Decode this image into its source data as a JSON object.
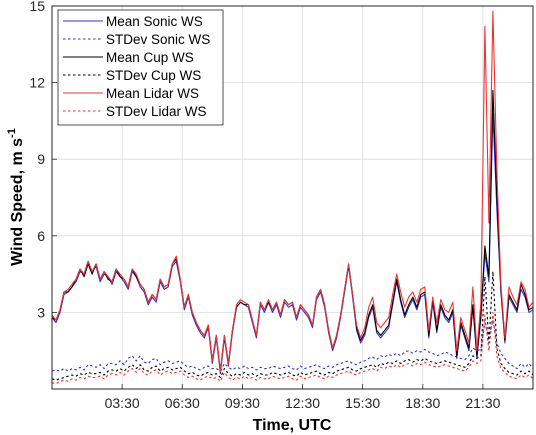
{
  "chart_data": {
    "type": "line",
    "xlabel": "Time, UTC",
    "ylabel_main": "Wind Speed, m s",
    "ylabel_sup": "-1",
    "xlim": [
      0,
      24
    ],
    "ylim": [
      0,
      15
    ],
    "x_ticks": [
      {
        "hour": 3.5,
        "label": "03:30"
      },
      {
        "hour": 6.5,
        "label": "06:30"
      },
      {
        "hour": 9.5,
        "label": "09:30"
      },
      {
        "hour": 12.5,
        "label": "12:30"
      },
      {
        "hour": 15.5,
        "label": "15:30"
      },
      {
        "hour": 18.5,
        "label": "18:30"
      },
      {
        "hour": 21.5,
        "label": "21:30"
      }
    ],
    "y_ticks": [
      3,
      6,
      9,
      12,
      15
    ],
    "grid": true,
    "legend_position": "top-left",
    "x": [
      0.0,
      0.2,
      0.4,
      0.6,
      0.8,
      1.0,
      1.2,
      1.4,
      1.6,
      1.8,
      2.0,
      2.2,
      2.4,
      2.6,
      2.8,
      3.0,
      3.2,
      3.4,
      3.6,
      3.8,
      4.0,
      4.2,
      4.4,
      4.6,
      4.8,
      5.0,
      5.2,
      5.4,
      5.6,
      5.8,
      6.0,
      6.2,
      6.4,
      6.6,
      6.8,
      7.0,
      7.2,
      7.4,
      7.6,
      7.8,
      8.0,
      8.2,
      8.4,
      8.6,
      8.8,
      9.0,
      9.2,
      9.4,
      9.6,
      9.8,
      10.0,
      10.2,
      10.4,
      10.6,
      10.8,
      11.0,
      11.2,
      11.4,
      11.6,
      11.8,
      12.0,
      12.2,
      12.4,
      12.6,
      12.8,
      13.0,
      13.2,
      13.4,
      13.6,
      13.8,
      14.0,
      14.2,
      14.4,
      14.6,
      14.8,
      15.0,
      15.2,
      15.4,
      15.6,
      15.8,
      16.0,
      16.2,
      16.4,
      16.6,
      16.8,
      17.0,
      17.2,
      17.4,
      17.6,
      17.8,
      18.0,
      18.2,
      18.4,
      18.6,
      18.8,
      19.0,
      19.2,
      19.4,
      19.6,
      19.8,
      20.0,
      20.2,
      20.4,
      20.6,
      20.8,
      21.0,
      21.2,
      21.4,
      21.6,
      21.8,
      22.0,
      22.2,
      22.4,
      22.6,
      22.8,
      23.0,
      23.2,
      23.4,
      23.6,
      23.8,
      24.0
    ],
    "series": [
      {
        "name": "Mean Sonic WS",
        "color": "#3333cc",
        "dash": "solid",
        "values": [
          2.8,
          2.6,
          3.0,
          3.7,
          3.8,
          4.0,
          4.2,
          4.6,
          4.5,
          5.0,
          4.6,
          4.8,
          4.2,
          4.5,
          4.4,
          4.1,
          4.6,
          4.4,
          4.2,
          3.9,
          4.6,
          4.4,
          4.0,
          3.8,
          3.3,
          3.6,
          3.4,
          4.2,
          3.9,
          4.0,
          4.8,
          5.0,
          4.2,
          3.1,
          3.6,
          2.9,
          2.5,
          2.2,
          2.0,
          2.4,
          1.0,
          2.0,
          0.6,
          2.0,
          0.9,
          2.2,
          3.2,
          3.4,
          3.3,
          3.2,
          2.6,
          2.0,
          3.3,
          3.0,
          3.4,
          3.0,
          3.3,
          2.8,
          3.4,
          3.2,
          3.3,
          2.7,
          3.2,
          3.0,
          2.8,
          2.4,
          3.5,
          3.8,
          3.2,
          2.2,
          1.5,
          2.0,
          2.8,
          3.8,
          4.8,
          3.6,
          2.3,
          1.8,
          2.1,
          2.8,
          3.2,
          2.2,
          2.0,
          2.2,
          2.4,
          3.3,
          4.2,
          3.4,
          2.8,
          3.2,
          3.5,
          3.1,
          3.6,
          3.7,
          2.0,
          3.4,
          2.2,
          3.2,
          2.8,
          2.6,
          3.0,
          1.2,
          2.5,
          2.0,
          1.5,
          3.2,
          1.2,
          2.8,
          5.3,
          4.2,
          10.8,
          7.0,
          3.8,
          1.8,
          3.6,
          3.3,
          3.0,
          3.9,
          3.6,
          3.0,
          3.1
        ]
      },
      {
        "name": "STDev Sonic WS",
        "color": "#3333cc",
        "dash": "dot",
        "values": [
          0.7,
          0.75,
          0.7,
          0.8,
          0.7,
          0.8,
          0.75,
          0.85,
          0.75,
          0.95,
          0.9,
          0.85,
          0.95,
          0.8,
          1.0,
          1.0,
          0.95,
          1.1,
          0.95,
          1.2,
          1.3,
          1.1,
          1.3,
          1.05,
          1.0,
          1.15,
          1.2,
          0.95,
          1.05,
          1.1,
          1.0,
          1.05,
          1.1,
          0.95,
          0.85,
          0.9,
          0.8,
          0.75,
          0.85,
          0.9,
          0.8,
          0.8,
          0.7,
          1.0,
          0.85,
          0.75,
          0.85,
          0.8,
          0.9,
          0.8,
          0.85,
          0.75,
          0.85,
          0.8,
          0.8,
          0.9,
          0.85,
          0.8,
          0.85,
          0.9,
          0.8,
          0.75,
          0.9,
          0.8,
          0.85,
          0.9,
          0.95,
          0.85,
          0.8,
          0.9,
          0.85,
          0.95,
          1.0,
          1.05,
          1.1,
          1.0,
          0.95,
          1.05,
          1.1,
          1.2,
          1.25,
          1.15,
          1.3,
          1.25,
          1.35,
          1.3,
          1.4,
          1.3,
          1.45,
          1.5,
          1.4,
          1.5,
          1.45,
          1.55,
          1.45,
          1.4,
          1.3,
          1.35,
          1.45,
          1.4,
          1.3,
          1.25,
          1.2,
          1.15,
          1.3,
          1.6,
          1.5,
          1.55,
          2.6,
          2.0,
          2.7,
          1.8,
          1.4,
          1.2,
          1.0,
          0.9,
          0.8,
          1.0,
          0.85,
          1.0,
          0.8
        ]
      },
      {
        "name": "Mean Cup WS",
        "color": "#000000",
        "dash": "solid",
        "values": [
          2.8,
          2.7,
          3.1,
          3.8,
          3.8,
          4.0,
          4.3,
          4.7,
          4.4,
          4.9,
          4.5,
          4.9,
          4.3,
          4.6,
          4.3,
          4.2,
          4.7,
          4.4,
          4.3,
          4.0,
          4.7,
          4.4,
          4.1,
          3.9,
          3.4,
          3.7,
          3.5,
          4.3,
          4.0,
          4.1,
          4.9,
          5.1,
          4.3,
          3.2,
          3.7,
          3.0,
          2.6,
          2.3,
          2.1,
          2.5,
          1.1,
          2.1,
          0.7,
          2.1,
          1.0,
          2.3,
          3.2,
          3.4,
          3.3,
          3.3,
          2.7,
          2.1,
          3.4,
          3.1,
          3.4,
          3.1,
          3.4,
          2.9,
          3.5,
          3.3,
          3.4,
          2.8,
          3.3,
          3.1,
          2.9,
          2.5,
          3.6,
          3.9,
          3.3,
          2.3,
          1.6,
          2.1,
          2.9,
          3.9,
          4.9,
          3.7,
          2.4,
          1.9,
          2.2,
          2.9,
          3.3,
          2.3,
          2.1,
          2.3,
          2.5,
          3.4,
          4.3,
          3.5,
          2.9,
          3.3,
          3.6,
          3.2,
          3.7,
          3.8,
          2.1,
          3.5,
          2.3,
          3.3,
          2.9,
          2.7,
          3.1,
          1.3,
          2.6,
          2.1,
          1.6,
          3.3,
          1.3,
          2.9,
          5.6,
          4.4,
          11.7,
          7.5,
          3.9,
          1.9,
          3.7,
          3.4,
          3.1,
          4.1,
          3.7,
          3.1,
          3.2
        ]
      },
      {
        "name": "STDev Cup WS",
        "color": "#000000",
        "dash": "dot",
        "values": [
          0.4,
          0.35,
          0.4,
          0.45,
          0.5,
          0.55,
          0.5,
          0.6,
          0.55,
          0.65,
          0.6,
          0.6,
          0.65,
          0.55,
          0.7,
          0.75,
          0.7,
          0.8,
          0.7,
          0.85,
          0.95,
          0.8,
          0.95,
          0.75,
          0.7,
          0.85,
          0.9,
          0.7,
          0.8,
          0.85,
          0.75,
          0.8,
          0.85,
          0.7,
          0.6,
          0.65,
          0.55,
          0.5,
          0.6,
          0.65,
          0.55,
          0.6,
          0.45,
          0.8,
          0.6,
          0.5,
          0.6,
          0.55,
          0.65,
          0.55,
          0.6,
          0.5,
          0.6,
          0.55,
          0.55,
          0.65,
          0.6,
          0.55,
          0.6,
          0.65,
          0.55,
          0.5,
          0.65,
          0.55,
          0.6,
          0.65,
          0.7,
          0.6,
          0.55,
          0.65,
          0.6,
          0.7,
          0.75,
          0.8,
          0.85,
          0.75,
          0.7,
          0.8,
          0.85,
          0.9,
          0.95,
          0.85,
          1.0,
          0.95,
          1.05,
          1.0,
          1.1,
          1.0,
          1.1,
          1.15,
          1.05,
          1.15,
          1.1,
          1.2,
          1.1,
          1.05,
          1.0,
          1.05,
          1.1,
          1.05,
          1.0,
          0.95,
          0.9,
          0.85,
          1.0,
          1.3,
          1.2,
          1.3,
          4.4,
          1.8,
          4.6,
          1.6,
          1.0,
          0.8,
          0.65,
          0.6,
          0.55,
          0.7,
          0.6,
          0.7,
          0.55
        ]
      },
      {
        "name": "Mean Lidar WS",
        "color": "#ee3333",
        "dash": "solid",
        "values": [
          2.9,
          2.7,
          3.1,
          3.8,
          3.9,
          4.1,
          4.3,
          4.7,
          4.5,
          5.0,
          4.6,
          4.9,
          4.3,
          4.6,
          4.4,
          4.2,
          4.7,
          4.5,
          4.3,
          4.0,
          4.7,
          4.5,
          4.1,
          3.9,
          3.4,
          3.7,
          3.5,
          4.3,
          4.0,
          4.1,
          4.9,
          5.2,
          4.3,
          3.2,
          3.7,
          3.0,
          2.6,
          2.3,
          2.1,
          2.5,
          1.1,
          2.1,
          0.7,
          2.1,
          1.0,
          2.3,
          3.3,
          3.5,
          3.4,
          3.3,
          2.7,
          2.1,
          3.4,
          3.1,
          3.5,
          3.1,
          3.4,
          2.9,
          3.5,
          3.3,
          3.4,
          2.8,
          3.3,
          3.1,
          2.9,
          2.5,
          3.6,
          3.9,
          3.3,
          2.3,
          1.6,
          2.1,
          2.9,
          3.9,
          4.9,
          3.7,
          2.5,
          2.0,
          2.4,
          3.2,
          3.6,
          2.6,
          2.4,
          2.6,
          2.8,
          3.7,
          4.5,
          3.8,
          3.2,
          3.6,
          3.8,
          3.4,
          3.9,
          4.0,
          2.3,
          3.6,
          2.6,
          3.5,
          3.1,
          3.0,
          3.4,
          1.5,
          2.8,
          2.3,
          1.8,
          4.0,
          1.5,
          3.4,
          14.2,
          6.5,
          14.8,
          8.5,
          4.1,
          2.0,
          4.0,
          3.6,
          3.3,
          4.2,
          3.9,
          3.2,
          3.4
        ]
      },
      {
        "name": "STDev Lidar WS",
        "color": "#ee3333",
        "dash": "dot",
        "values": [
          0.25,
          0.2,
          0.3,
          0.35,
          0.3,
          0.4,
          0.35,
          0.45,
          0.4,
          0.5,
          0.45,
          0.45,
          0.5,
          0.4,
          0.55,
          0.6,
          0.55,
          0.65,
          0.55,
          0.7,
          0.8,
          0.65,
          0.8,
          0.6,
          0.55,
          0.7,
          0.75,
          0.55,
          0.65,
          0.7,
          0.6,
          0.65,
          0.7,
          0.55,
          0.45,
          0.5,
          0.4,
          0.35,
          0.45,
          0.5,
          0.4,
          0.45,
          0.3,
          0.65,
          0.45,
          0.35,
          0.45,
          0.4,
          0.5,
          0.4,
          0.45,
          0.35,
          0.45,
          0.4,
          0.4,
          0.5,
          0.45,
          0.4,
          0.45,
          0.5,
          0.4,
          0.35,
          0.5,
          0.4,
          0.45,
          0.5,
          0.55,
          0.45,
          0.4,
          0.5,
          0.45,
          0.55,
          0.6,
          0.65,
          0.7,
          0.6,
          0.55,
          0.65,
          0.7,
          0.75,
          0.8,
          0.7,
          0.85,
          0.8,
          0.9,
          0.85,
          0.95,
          0.85,
          0.95,
          1.0,
          0.9,
          1.0,
          0.95,
          1.05,
          0.95,
          0.9,
          0.85,
          0.9,
          0.95,
          0.9,
          0.85,
          0.8,
          0.75,
          0.7,
          0.85,
          1.1,
          1.0,
          1.1,
          2.9,
          1.5,
          3.0,
          1.3,
          0.8,
          0.65,
          0.5,
          0.45,
          0.4,
          0.55,
          0.45,
          0.55,
          0.4
        ]
      }
    ]
  }
}
